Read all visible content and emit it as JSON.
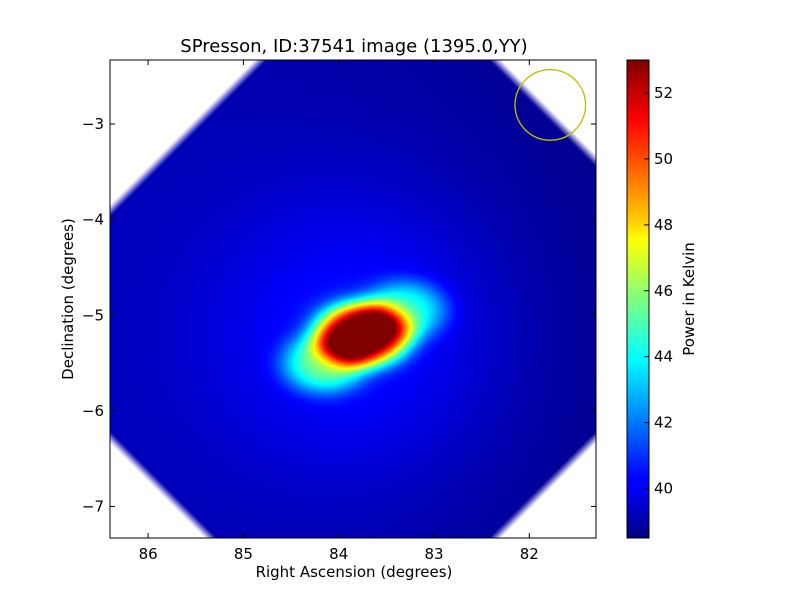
{
  "chart_data": {
    "type": "heatmap",
    "title": "SPresson, ID:37541 image (1395.0,YY)",
    "xlabel": "Right Ascension (degrees)",
    "ylabel": "Declination (degrees)",
    "xlim": [
      86.4,
      81.3
    ],
    "ylim": [
      -7.33,
      -2.33
    ],
    "x_ticks": [
      86,
      85,
      84,
      83,
      82
    ],
    "y_ticks": [
      -3,
      -4,
      -5,
      -6,
      -7
    ],
    "colorbar": {
      "label": "Power in Kelvin",
      "colormap": "jet",
      "range": [
        38.5,
        53.0
      ],
      "ticks": [
        40,
        42,
        44,
        46,
        48,
        50,
        52
      ]
    },
    "background_level": 38.7,
    "source": {
      "center_ra": 83.75,
      "center_dec": -5.2,
      "peak": 53.0,
      "description_lobes": [
        {
          "ra": 83.75,
          "dec": -5.2,
          "amp": 14.2,
          "sigma_ra": 0.38,
          "sigma_dec": 0.26
        },
        {
          "ra": 84.15,
          "dec": -5.5,
          "amp": 5.0,
          "sigma_ra": 0.35,
          "sigma_dec": 0.25
        },
        {
          "ra": 83.3,
          "dec": -4.95,
          "amp": 4.0,
          "sigma_ra": 0.35,
          "sigma_dec": 0.25
        }
      ],
      "halo": {
        "ra": 83.8,
        "dec": -5.2,
        "amp": 1.6,
        "sigma": 1.1
      }
    },
    "beam_circle": {
      "ra": 81.78,
      "dec": -2.8,
      "radius_deg": 0.37,
      "color": "#bfbf00"
    }
  },
  "colors": {
    "masked_corner": "#ffffff",
    "axes_frame": "#000000"
  }
}
